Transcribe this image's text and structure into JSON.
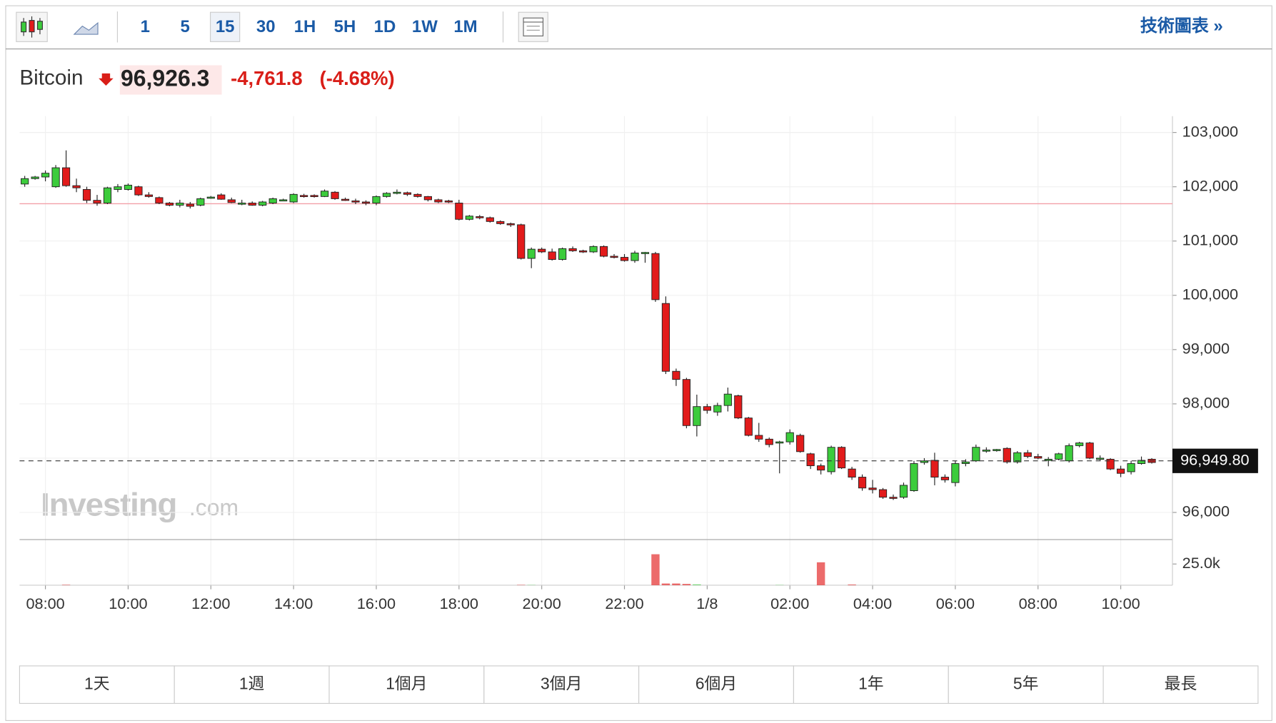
{
  "toolbar": {
    "intervals": [
      "1",
      "5",
      "15",
      "30",
      "1H",
      "5H",
      "1D",
      "1W",
      "1M"
    ],
    "active_interval_index": 2,
    "link": "技術圖表 »"
  },
  "header": {
    "name": "Bitcoin",
    "price": "96,926.3",
    "change": "-4,761.8",
    "change_percent": "(-4.68%)"
  },
  "watermark": {
    "brand": "Investing",
    "suffix": ".com"
  },
  "range_buttons": [
    "1天",
    "1週",
    "1個月",
    "3個月",
    "6個月",
    "1年",
    "5年",
    "最長"
  ],
  "chart_data": {
    "type": "candlestick",
    "up_color": "#3ccc3c",
    "down_color": "#e21b1b",
    "grid": true,
    "xlim": [
      -0.5,
      111
    ],
    "xticks": [
      {
        "value": 2,
        "label": "08:00"
      },
      {
        "value": 10,
        "label": "10:00"
      },
      {
        "value": 18,
        "label": "12:00"
      },
      {
        "value": 26,
        "label": "14:00"
      },
      {
        "value": 34,
        "label": "16:00"
      },
      {
        "value": 42,
        "label": "18:00"
      },
      {
        "value": 50,
        "label": "20:00"
      },
      {
        "value": 58,
        "label": "22:00"
      },
      {
        "value": 66,
        "label": "1/8"
      },
      {
        "value": 74,
        "label": "02:00"
      },
      {
        "value": 82,
        "label": "04:00"
      },
      {
        "value": 90,
        "label": "06:00"
      },
      {
        "value": 98,
        "label": "08:00"
      },
      {
        "value": 106,
        "label": "10:00"
      }
    ],
    "ylim": [
      95500,
      103300
    ],
    "yticks": [
      {
        "value": 96000,
        "label": "96,000"
      },
      {
        "value": 97000,
        "label": "97,000"
      },
      {
        "value": 98000,
        "label": "98,000"
      },
      {
        "value": 99000,
        "label": "99,000"
      },
      {
        "value": 100000,
        "label": "100,000"
      },
      {
        "value": 101000,
        "label": "101,000"
      },
      {
        "value": 102000,
        "label": "102,000"
      },
      {
        "value": 103000,
        "label": "103,000"
      }
    ],
    "reference_line": 101688.1,
    "current_price": {
      "value": 96949.8,
      "label": "96,949.80"
    },
    "volume_ylim": [
      0,
      53800
    ],
    "volume_ticks": [
      {
        "value": 25000,
        "label": "25.0k"
      }
    ],
    "ohlc": [
      [
        102050,
        102200,
        102000,
        102150
      ],
      [
        102150,
        102200,
        102130,
        102180
      ],
      [
        102180,
        102300,
        102100,
        102250
      ],
      [
        102000,
        102400,
        101980,
        102350
      ],
      [
        102350,
        102670,
        102000,
        102020
      ],
      [
        102020,
        102150,
        101900,
        101980
      ],
      [
        101950,
        102000,
        101700,
        101750
      ],
      [
        101750,
        101850,
        101650,
        101700
      ],
      [
        101700,
        102000,
        101680,
        101980
      ],
      [
        101950,
        102050,
        101900,
        102000
      ],
      [
        101950,
        102060,
        101930,
        102030
      ],
      [
        102000,
        102020,
        101830,
        101850
      ],
      [
        101850,
        101900,
        101800,
        101820
      ],
      [
        101800,
        101820,
        101680,
        101700
      ],
      [
        101700,
        101720,
        101640,
        101660
      ],
      [
        101660,
        101760,
        101620,
        101700
      ],
      [
        101680,
        101720,
        101600,
        101640
      ],
      [
        101660,
        101800,
        101640,
        101780
      ],
      [
        101800,
        101830,
        101780,
        101810
      ],
      [
        101850,
        101880,
        101760,
        101770
      ],
      [
        101760,
        101800,
        101700,
        101710
      ],
      [
        101690,
        101760,
        101660,
        101700
      ],
      [
        101700,
        101730,
        101650,
        101660
      ],
      [
        101660,
        101740,
        101640,
        101720
      ],
      [
        101700,
        101800,
        101680,
        101780
      ],
      [
        101760,
        101780,
        101740,
        101760
      ],
      [
        101720,
        101880,
        101700,
        101860
      ],
      [
        101840,
        101870,
        101800,
        101830
      ],
      [
        101840,
        101860,
        101800,
        101820
      ],
      [
        101820,
        101950,
        101810,
        101920
      ],
      [
        101900,
        101920,
        101760,
        101780
      ],
      [
        101770,
        101800,
        101740,
        101760
      ],
      [
        101740,
        101780,
        101680,
        101720
      ],
      [
        101720,
        101750,
        101660,
        101700
      ],
      [
        101700,
        101840,
        101660,
        101820
      ],
      [
        101820,
        101900,
        101800,
        101880
      ],
      [
        101880,
        101950,
        101860,
        101900
      ],
      [
        101890,
        101910,
        101830,
        101860
      ],
      [
        101860,
        101880,
        101800,
        101820
      ],
      [
        101820,
        101830,
        101730,
        101760
      ],
      [
        101760,
        101780,
        101700,
        101720
      ],
      [
        101740,
        101760,
        101700,
        101720
      ],
      [
        101700,
        101760,
        101380,
        101400
      ],
      [
        101400,
        101480,
        101380,
        101460
      ],
      [
        101450,
        101480,
        101400,
        101430
      ],
      [
        101430,
        101450,
        101340,
        101360
      ],
      [
        101360,
        101380,
        101300,
        101320
      ],
      [
        101320,
        101340,
        101260,
        101300
      ],
      [
        101300,
        101320,
        100660,
        100680
      ],
      [
        100680,
        100880,
        100500,
        100850
      ],
      [
        100850,
        100880,
        100780,
        100800
      ],
      [
        100800,
        100860,
        100640,
        100660
      ],
      [
        100660,
        100880,
        100640,
        100860
      ],
      [
        100860,
        100900,
        100800,
        100820
      ],
      [
        100820,
        100840,
        100780,
        100800
      ],
      [
        100800,
        100920,
        100780,
        100900
      ],
      [
        100900,
        100920,
        100700,
        100720
      ],
      [
        100720,
        100760,
        100680,
        100700
      ],
      [
        100700,
        100760,
        100620,
        100640
      ],
      [
        100640,
        100820,
        100600,
        100780
      ],
      [
        100780,
        100800,
        100600,
        100790
      ],
      [
        100770,
        100800,
        99880,
        99920
      ],
      [
        99850,
        99980,
        98550,
        98600
      ],
      [
        98600,
        98650,
        98330,
        98450
      ],
      [
        98450,
        98480,
        97550,
        97600
      ],
      [
        97600,
        98170,
        97400,
        97950
      ],
      [
        97950,
        98000,
        97820,
        97880
      ],
      [
        97850,
        98020,
        97780,
        97970
      ],
      [
        97970,
        98300,
        97860,
        98180
      ],
      [
        98150,
        98170,
        97720,
        97740
      ],
      [
        97740,
        97760,
        97400,
        97420
      ],
      [
        97420,
        97650,
        97300,
        97350
      ],
      [
        97350,
        97380,
        97200,
        97250
      ],
      [
        97280,
        97320,
        96720,
        97300
      ],
      [
        97300,
        97530,
        97250,
        97470
      ],
      [
        97420,
        97450,
        97100,
        97120
      ],
      [
        97080,
        97100,
        96800,
        96860
      ],
      [
        96860,
        96900,
        96700,
        96780
      ],
      [
        96750,
        97230,
        96700,
        97200
      ],
      [
        97200,
        97220,
        96800,
        96820
      ],
      [
        96800,
        96840,
        96600,
        96650
      ],
      [
        96650,
        96700,
        96400,
        96450
      ],
      [
        96450,
        96600,
        96350,
        96420
      ],
      [
        96420,
        96450,
        96250,
        96280
      ],
      [
        96280,
        96330,
        96230,
        96270
      ],
      [
        96280,
        96550,
        96250,
        96500
      ],
      [
        96400,
        96950,
        96380,
        96900
      ],
      [
        96920,
        97000,
        96880,
        96950
      ],
      [
        96960,
        97100,
        96500,
        96650
      ],
      [
        96650,
        96700,
        96550,
        96600
      ],
      [
        96550,
        96950,
        96480,
        96900
      ],
      [
        96900,
        96980,
        96850,
        96930
      ],
      [
        96950,
        97250,
        96930,
        97200
      ],
      [
        97150,
        97200,
        97100,
        97150
      ],
      [
        97150,
        97170,
        97120,
        97160
      ],
      [
        97180,
        97200,
        96900,
        96930
      ],
      [
        96930,
        97130,
        96900,
        97100
      ],
      [
        97100,
        97150,
        97000,
        97030
      ],
      [
        97030,
        97080,
        96980,
        97000
      ],
      [
        96980,
        97020,
        96850,
        96980
      ],
      [
        96980,
        97100,
        96960,
        97080
      ],
      [
        96950,
        97270,
        96920,
        97230
      ],
      [
        97230,
        97300,
        97200,
        97280
      ],
      [
        97280,
        97300,
        96980,
        97000
      ],
      [
        97000,
        97050,
        96960,
        97000
      ],
      [
        96980,
        97000,
        96780,
        96800
      ],
      [
        96800,
        96860,
        96650,
        96720
      ],
      [
        96750,
        96950,
        96700,
        96900
      ],
      [
        96900,
        97030,
        96880,
        96960
      ],
      [
        96980,
        97000,
        96900,
        96920
      ]
    ],
    "volume": [
      0,
      0,
      0,
      0,
      500,
      0,
      0,
      0,
      0,
      0,
      0,
      0,
      0,
      0,
      0,
      0,
      0,
      0,
      0,
      0,
      0,
      0,
      0,
      0,
      0,
      0,
      0,
      0,
      0,
      0,
      0,
      0,
      0,
      0,
      0,
      0,
      0,
      0,
      0,
      0,
      0,
      0,
      0,
      0,
      0,
      0,
      0,
      0,
      400,
      300,
      0,
      0,
      0,
      0,
      0,
      0,
      0,
      0,
      0,
      0,
      0,
      36500,
      2000,
      2000,
      1500,
      1000,
      0,
      0,
      0,
      0,
      0,
      0,
      0,
      300,
      0,
      0,
      0,
      27000,
      0,
      0,
      800,
      0,
      0,
      0,
      0,
      0,
      0,
      0,
      0,
      0,
      0,
      0,
      0,
      0,
      0,
      0,
      0,
      0,
      0,
      0,
      0,
      0,
      0,
      0,
      0,
      0,
      0,
      0,
      0,
      0
    ]
  }
}
